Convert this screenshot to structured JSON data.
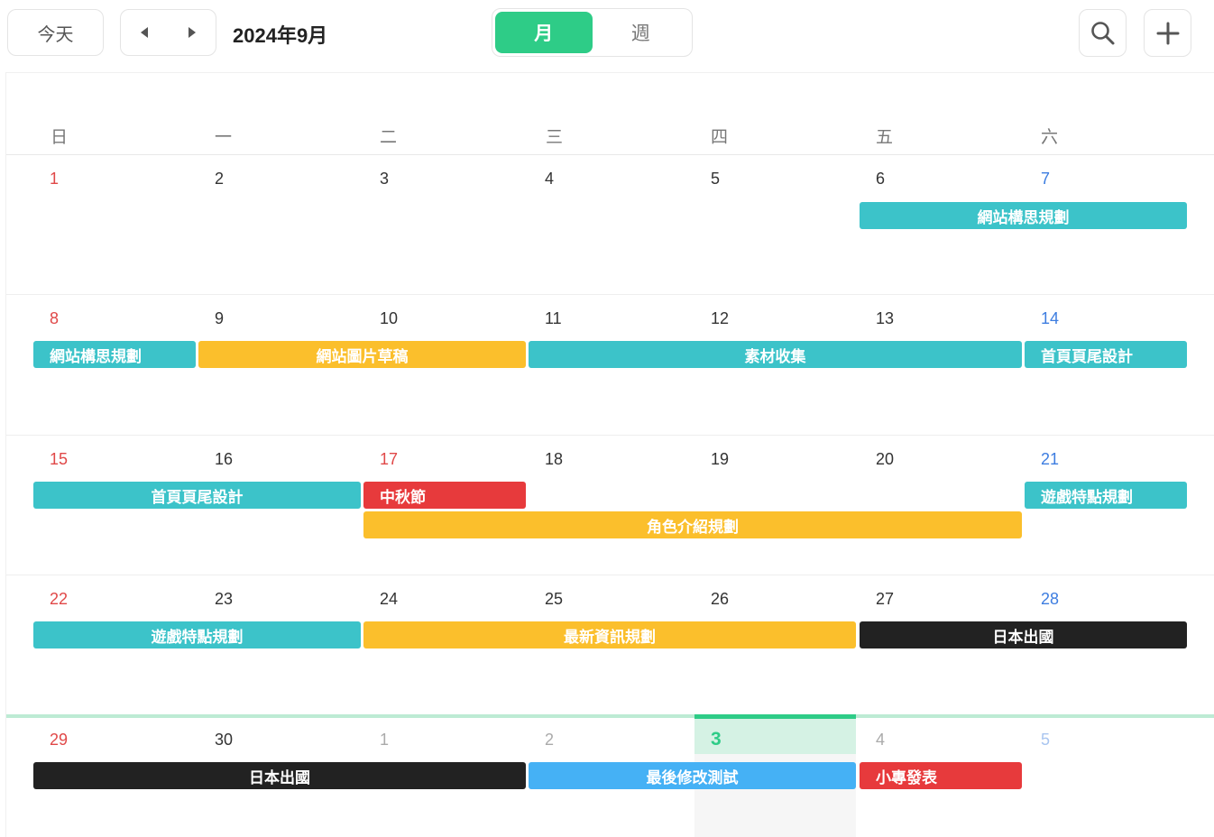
{
  "toolbar": {
    "today_label": "今天",
    "month_title": "2024年9月",
    "views": [
      "月",
      "週"
    ],
    "active_view": "月"
  },
  "calendar": {
    "weekday_headers": [
      "日",
      "一",
      "二",
      "三",
      "四",
      "五",
      "六"
    ],
    "today_date": "3",
    "weeks": [
      [
        "1",
        "2",
        "3",
        "4",
        "5",
        "6",
        "7"
      ],
      [
        "8",
        "9",
        "10",
        "11",
        "12",
        "13",
        "14"
      ],
      [
        "15",
        "16",
        "17",
        "18",
        "19",
        "20",
        "21"
      ],
      [
        "22",
        "23",
        "24",
        "25",
        "26",
        "27",
        "28"
      ],
      [
        "29",
        "30",
        "1",
        "2",
        "3",
        "4",
        "5"
      ]
    ],
    "events": [
      {
        "title": "網站構思規劃",
        "color": "#3cc3c9"
      },
      {
        "title": "網站構思規劃",
        "color": "#3cc3c9"
      },
      {
        "title": "網站圖片草稿",
        "color": "#fbbf2c"
      },
      {
        "title": "素材收集",
        "color": "#3cc3c9"
      },
      {
        "title": "首頁頁尾設計",
        "color": "#3cc3c9"
      },
      {
        "title": "首頁頁尾設計",
        "color": "#3cc3c9"
      },
      {
        "title": "中秋節",
        "color": "#e73a3c"
      },
      {
        "title": "遊戲特點規劃",
        "color": "#3cc3c9"
      },
      {
        "title": "角色介紹規劃",
        "color": "#fbbf2c"
      },
      {
        "title": "遊戲特點規劃",
        "color": "#3cc3c9"
      },
      {
        "title": "最新資訊規劃",
        "color": "#fbbf2c"
      },
      {
        "title": "日本出國",
        "color": "#222222"
      },
      {
        "title": "日本出國",
        "color": "#222222"
      },
      {
        "title": "最後修改測試",
        "color": "#45b1f5"
      },
      {
        "title": "小專發表",
        "color": "#e73a3c"
      }
    ]
  },
  "theme": {
    "accent": "#2ecc87",
    "sunday": "#e04848",
    "saturday": "#3d7de0"
  }
}
